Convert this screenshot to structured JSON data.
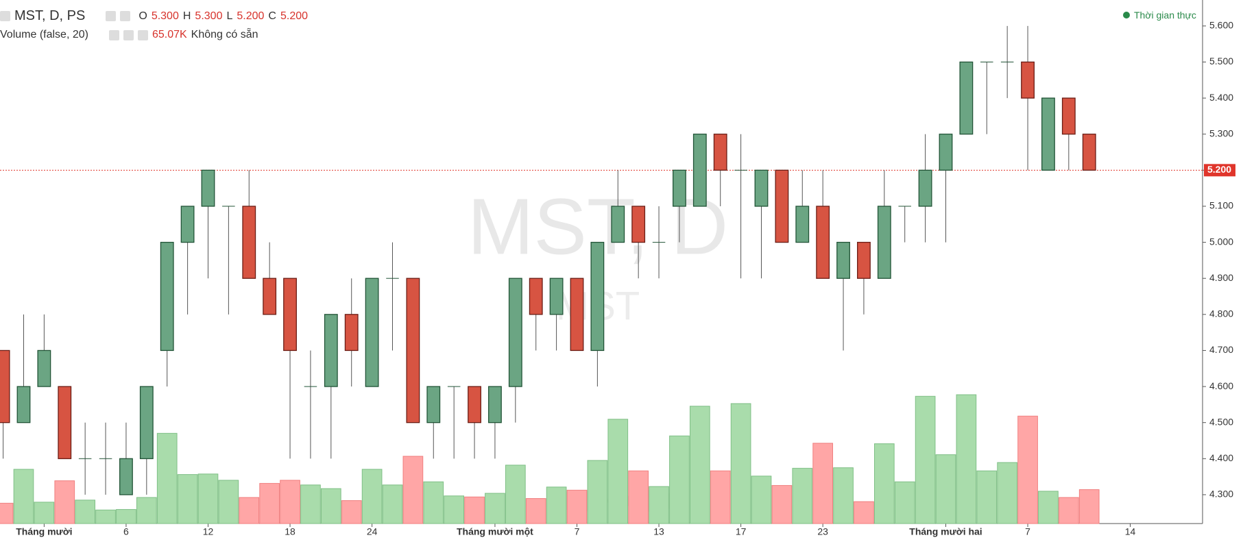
{
  "header": {
    "symbol": "MST, D, PS",
    "ohlc": [
      {
        "key": "O",
        "value": "5.300"
      },
      {
        "key": "H",
        "value": "5.300"
      },
      {
        "key": "L",
        "value": "5.200"
      },
      {
        "key": "C",
        "value": "5.200"
      }
    ],
    "volume_study": "Volume (false, 20)",
    "volume_value": "65.07K",
    "volume_note": "Không có sẵn",
    "status": "Thời gian thực"
  },
  "chart_data": {
    "type": "candlestick",
    "watermark": "MST, D",
    "watermark_sub": "MST",
    "series": [
      {
        "up_color": "#6ba583",
        "down_color": "#d75442",
        "open": [
          4.7,
          4.5,
          4.6,
          4.6,
          4.4,
          4.4,
          4.3,
          4.4,
          4.7,
          5.0,
          5.1,
          5.1,
          5.1,
          4.9,
          4.9,
          4.6,
          4.6,
          4.8,
          4.6,
          4.9,
          4.9,
          4.5,
          4.6,
          4.6,
          4.5,
          4.6,
          4.9,
          4.8,
          4.9,
          4.7,
          5.0,
          5.1,
          5.0,
          5.1,
          5.1,
          5.3,
          5.2,
          5.1,
          5.2,
          5.0,
          5.1,
          4.9,
          5.0,
          4.9,
          5.1,
          5.1,
          5.2,
          5.3,
          5.5,
          5.5,
          5.5,
          5.2,
          5.4,
          5.3
        ],
        "high": [
          4.7,
          4.8,
          4.8,
          4.6,
          4.5,
          4.5,
          4.5,
          4.6,
          5.0,
          5.1,
          5.2,
          5.1,
          5.2,
          5.0,
          4.9,
          4.7,
          4.8,
          4.9,
          4.9,
          5.0,
          4.9,
          4.6,
          4.6,
          4.6,
          4.6,
          4.9,
          4.9,
          4.9,
          4.9,
          5.0,
          5.2,
          5.1,
          5.1,
          5.2,
          5.3,
          5.3,
          5.3,
          5.2,
          5.2,
          5.2,
          5.2,
          5.0,
          5.0,
          5.2,
          5.1,
          5.3,
          5.3,
          5.5,
          5.5,
          5.6,
          5.6,
          5.4,
          5.4,
          5.3
        ],
        "low": [
          4.4,
          4.5,
          4.6,
          4.4,
          4.3,
          4.3,
          4.3,
          4.3,
          4.6,
          4.8,
          4.9,
          4.8,
          4.9,
          4.8,
          4.4,
          4.4,
          4.4,
          4.6,
          4.6,
          4.7,
          4.5,
          4.4,
          4.4,
          4.4,
          4.4,
          4.5,
          4.7,
          4.7,
          4.7,
          4.6,
          5.0,
          4.9,
          4.9,
          5.0,
          5.1,
          5.1,
          4.9,
          4.9,
          5.0,
          5.0,
          4.9,
          4.7,
          4.8,
          4.9,
          5.0,
          5.0,
          5.0,
          5.3,
          5.3,
          5.4,
          5.2,
          5.2,
          5.2,
          5.2
        ],
        "close": [
          4.5,
          4.6,
          4.7,
          4.4,
          4.4,
          4.4,
          4.4,
          4.6,
          5.0,
          5.1,
          5.2,
          5.1,
          4.9,
          4.8,
          4.7,
          4.6,
          4.8,
          4.7,
          4.9,
          4.9,
          4.5,
          4.6,
          4.6,
          4.5,
          4.6,
          4.9,
          4.8,
          4.9,
          4.7,
          5.0,
          5.1,
          5.0,
          5.0,
          5.2,
          5.3,
          5.2,
          5.2,
          5.2,
          5.0,
          5.1,
          4.9,
          5.0,
          4.9,
          5.1,
          5.1,
          5.2,
          5.3,
          5.5,
          5.5,
          5.5,
          5.4,
          5.4,
          5.3,
          5.2
        ]
      }
    ],
    "volume": {
      "up_color": "#a9dcab",
      "down_color": "#ffa6a6",
      "values": [
        39,
        104,
        41,
        82,
        45,
        26,
        27,
        50,
        173,
        94,
        95,
        83,
        50,
        77,
        83,
        74,
        67,
        44,
        104,
        74,
        129,
        80,
        53,
        51,
        58,
        112,
        48,
        70,
        64,
        121,
        200,
        101,
        71,
        168,
        225,
        101,
        230,
        91,
        73,
        106,
        154,
        107,
        42,
        153,
        80,
        244,
        132,
        247,
        101,
        117,
        206,
        62,
        50,
        65.07
      ]
    },
    "last_price": {
      "value": 5.2,
      "label": "5.200"
    },
    "ylim": [
      4.22,
      5.672
    ],
    "yticks": [
      {
        "value": 4.3,
        "label": "4.300"
      },
      {
        "value": 4.4,
        "label": "4.400"
      },
      {
        "value": 4.5,
        "label": "4.500"
      },
      {
        "value": 4.6,
        "label": "4.600"
      },
      {
        "value": 4.7,
        "label": "4.700"
      },
      {
        "value": 4.8,
        "label": "4.800"
      },
      {
        "value": 4.9,
        "label": "4.900"
      },
      {
        "value": 5.0,
        "label": "5.000"
      },
      {
        "value": 5.1,
        "label": "5.100"
      },
      {
        "value": 5.2,
        "label": "5.200"
      },
      {
        "value": 5.3,
        "label": "5.300"
      },
      {
        "value": 5.4,
        "label": "5.400"
      },
      {
        "value": 5.5,
        "label": "5.500"
      },
      {
        "value": 5.6,
        "label": "5.600"
      }
    ],
    "xlim": [
      -0.154,
      58.53
    ],
    "xticks": [
      {
        "value": 2,
        "label": "Tháng mười"
      },
      {
        "value": 6,
        "label": "6"
      },
      {
        "value": 10,
        "label": "12"
      },
      {
        "value": 14,
        "label": "18"
      },
      {
        "value": 18,
        "label": "24"
      },
      {
        "value": 24,
        "label": "Tháng mười một"
      },
      {
        "value": 28,
        "label": "7"
      },
      {
        "value": 32,
        "label": "13"
      },
      {
        "value": 36,
        "label": "17"
      },
      {
        "value": 40,
        "label": "23"
      },
      {
        "value": 46,
        "label": "Tháng mười hai"
      },
      {
        "value": 50,
        "label": "7"
      },
      {
        "value": 55,
        "label": "14"
      }
    ]
  }
}
